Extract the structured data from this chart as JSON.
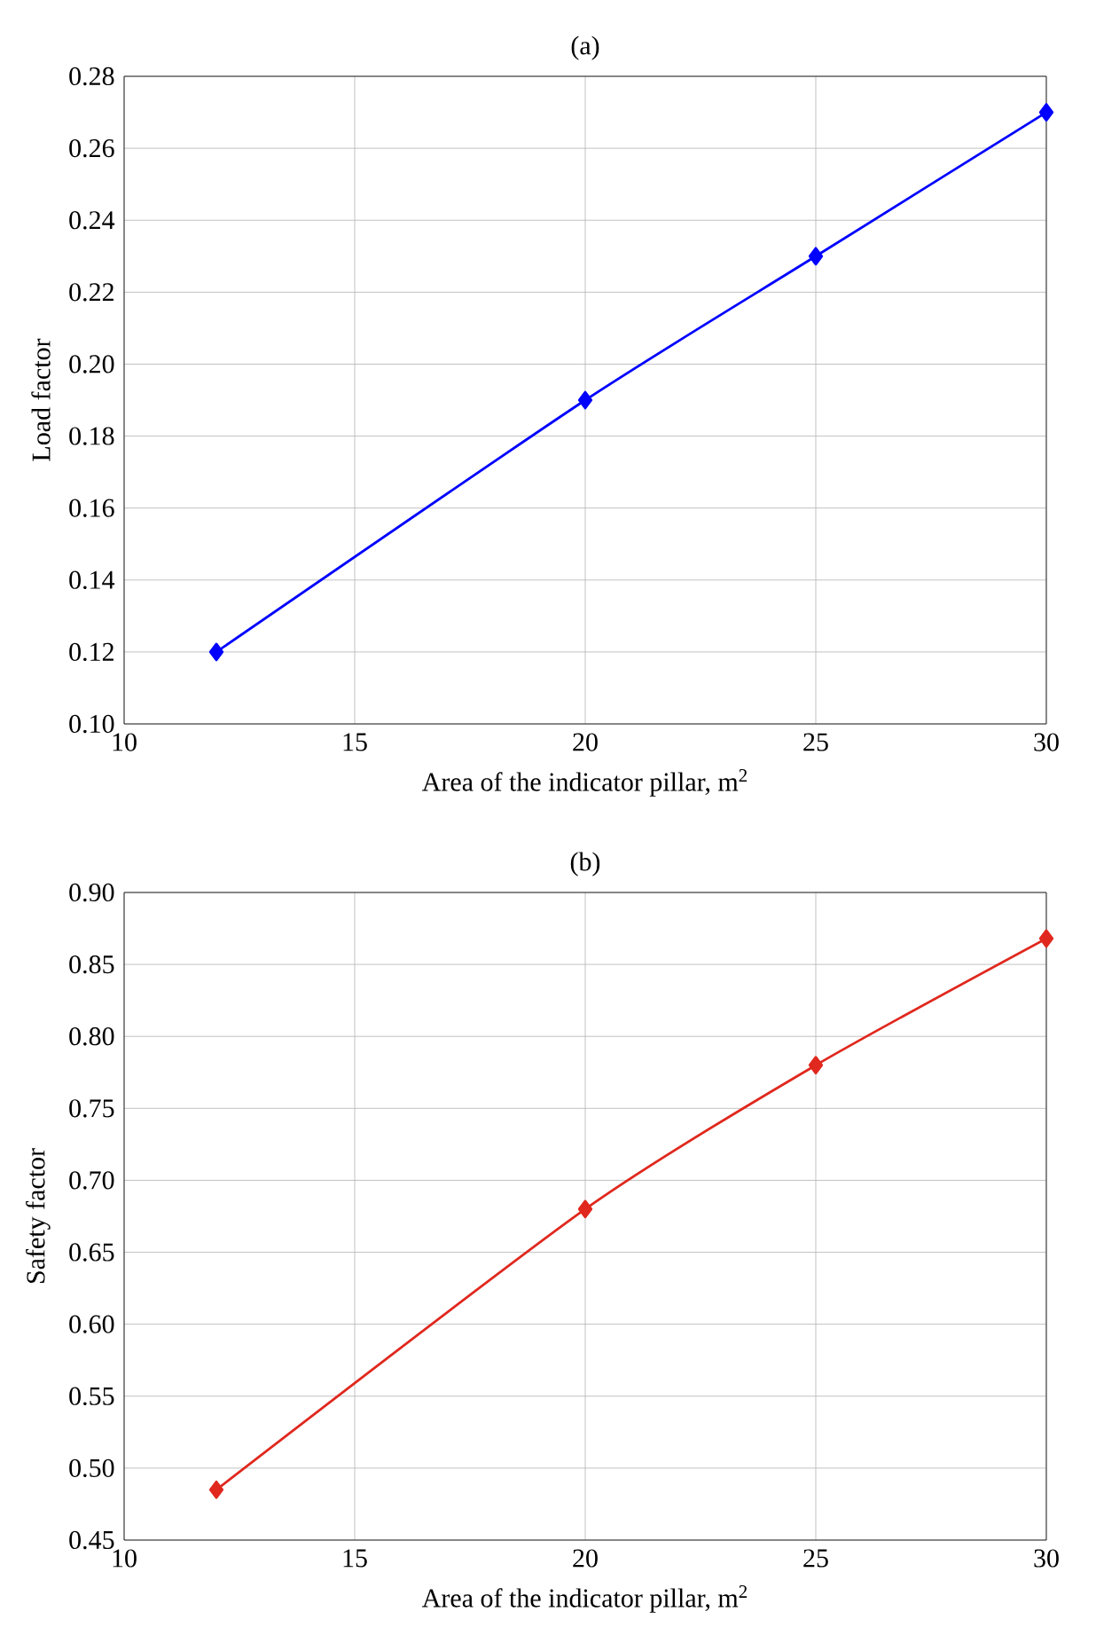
{
  "chart_data": [
    {
      "type": "line",
      "title": "(a)",
      "xlabel": "Area of the indicator pillar, m$^{2}$",
      "ylabel": "Load factor",
      "x": [
        12,
        20,
        25,
        30
      ],
      "series": [
        {
          "color": "#0000ff",
          "values": [
            0.12,
            0.19,
            0.23,
            0.27
          ]
        }
      ],
      "xlim": [
        10,
        30
      ],
      "xticks": [
        10,
        15,
        20,
        25,
        30
      ],
      "ylim": [
        0.1,
        0.28
      ],
      "yticks": [
        {
          "value": 0.1,
          "label": "0.10"
        },
        {
          "value": 0.12,
          "label": "0.12"
        },
        {
          "value": 0.14,
          "label": "0.14"
        },
        {
          "value": 0.16,
          "label": "0.16"
        },
        {
          "value": 0.18,
          "label": "0.18"
        },
        {
          "value": 0.2,
          "label": "0.20"
        },
        {
          "value": 0.22,
          "label": "0.22"
        },
        {
          "value": 0.24,
          "label": "0.24"
        },
        {
          "value": 0.26,
          "label": "0.26"
        },
        {
          "value": 0.28,
          "label": "0.28"
        }
      ],
      "grid": true,
      "marker": "diamond",
      "line_style": "solid"
    },
    {
      "type": "line",
      "title": "(b)",
      "xlabel": "Area of the indicator pillar, m$^{2}$",
      "ylabel": "Safety factor",
      "x": [
        12,
        20,
        25,
        30
      ],
      "series": [
        {
          "color": "#e0281e",
          "values": [
            0.485,
            0.68,
            0.78,
            0.868
          ]
        }
      ],
      "xlim": [
        10,
        30
      ],
      "xticks": [
        10,
        15,
        20,
        25,
        30
      ],
      "ylim": [
        0.45,
        0.9
      ],
      "yticks": [
        {
          "value": 0.45,
          "label": "0.45"
        },
        {
          "value": 0.5,
          "label": "0.50"
        },
        {
          "value": 0.55,
          "label": "0.55"
        },
        {
          "value": 0.6,
          "label": "0.60"
        },
        {
          "value": 0.65,
          "label": "0.65"
        },
        {
          "value": 0.7,
          "label": "0.70"
        },
        {
          "value": 0.75,
          "label": "0.75"
        },
        {
          "value": 0.8,
          "label": "0.80"
        },
        {
          "value": 0.85,
          "label": "0.85"
        },
        {
          "value": 0.9,
          "label": "0.90"
        }
      ],
      "grid": true,
      "marker": "diamond",
      "line_style": "solid"
    }
  ]
}
